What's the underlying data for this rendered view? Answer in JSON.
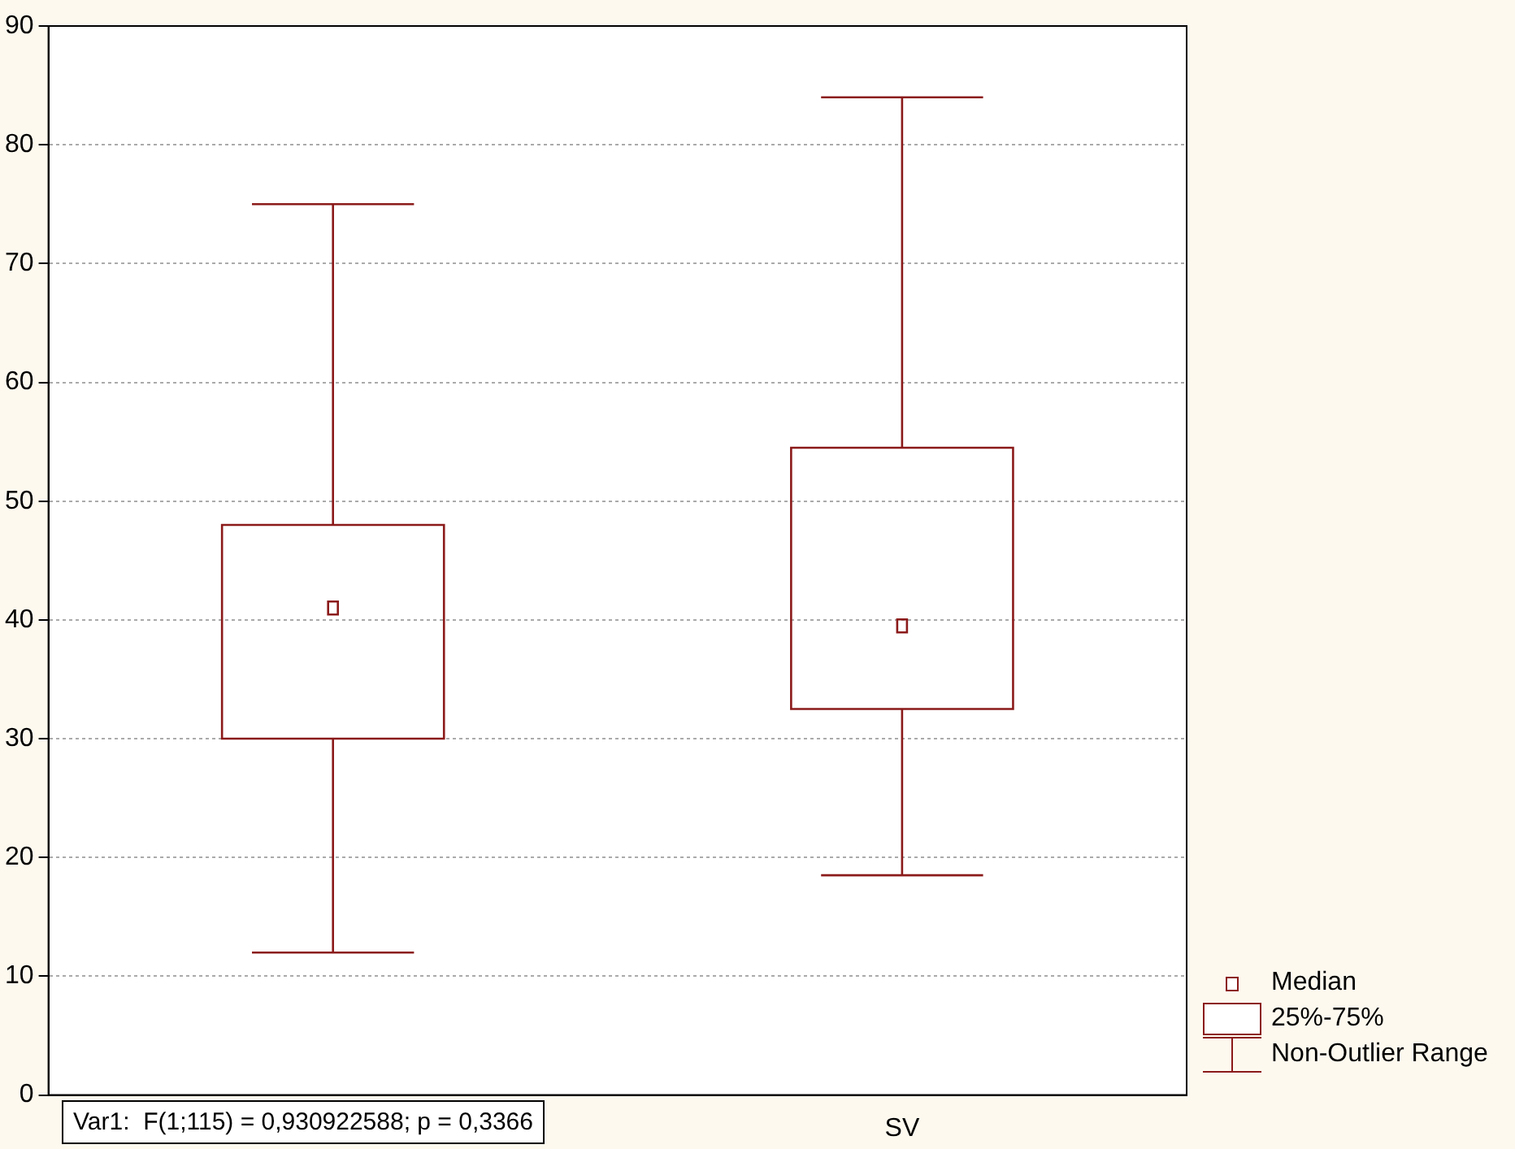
{
  "chart_data": {
    "type": "box",
    "categories": [
      null,
      "SV"
    ],
    "color": "#8b1a1a",
    "boxes": [
      {
        "low": 12,
        "q1": 30,
        "median": 41,
        "q3": 48,
        "high": 75
      },
      {
        "low": 18.5,
        "q1": 32.5,
        "median": 39.5,
        "q3": 54.5,
        "high": 84
      }
    ],
    "ylim": [
      0,
      90
    ],
    "yticks": [
      0,
      10,
      20,
      30,
      40,
      50,
      60,
      70,
      80,
      90
    ],
    "grid": "y",
    "annotations": [
      "Median",
      "25%-75%",
      "Non-Outlier Range",
      "Var1:  F(1;115) = 0,930922588; p = 0,3366"
    ]
  }
}
